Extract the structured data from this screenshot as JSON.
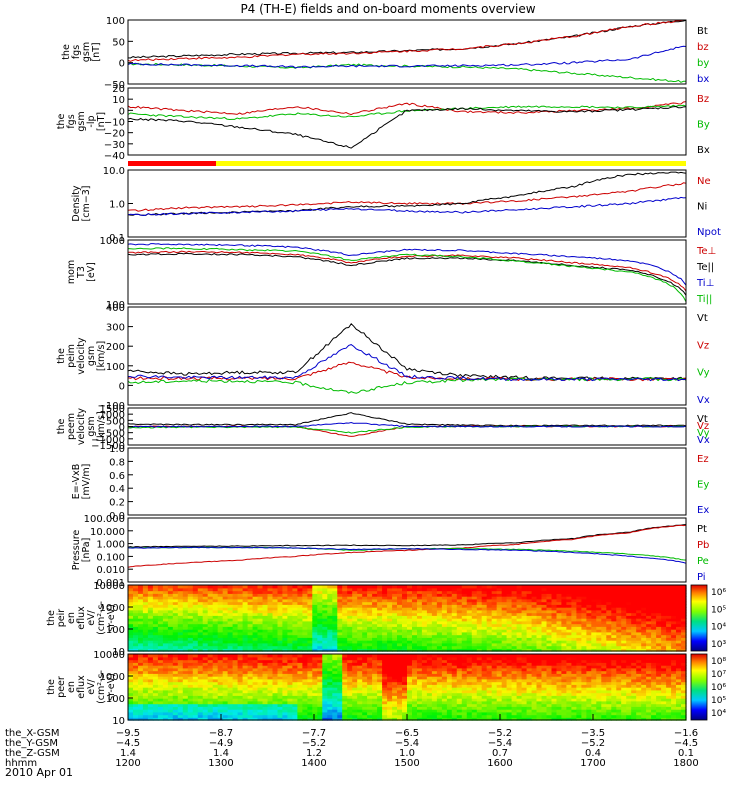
{
  "title": "P4 (TH-E) fields and on-board moments overview",
  "date_label": "2010 Apr 01",
  "chart_data": [
    {
      "type": "line",
      "title": "fgs",
      "ylabel": [
        "the",
        "fgs",
        "gsm",
        "[nT]"
      ],
      "ylim": [
        -50,
        100
      ],
      "yticks": [
        "100",
        "50",
        "0",
        "−50"
      ],
      "series": [
        {
          "name": "Bt",
          "color": "#000000",
          "values": [
            12,
            16,
            20,
            22,
            24,
            28,
            33,
            45,
            62,
            85,
            100
          ]
        },
        {
          "name": "bz",
          "color": "#cc0000",
          "values": [
            5,
            10,
            12,
            20,
            22,
            27,
            33,
            45,
            62,
            85,
            100
          ]
        },
        {
          "name": "by",
          "color": "#00bb00",
          "values": [
            -3,
            -5,
            -8,
            -12,
            -5,
            -8,
            -10,
            -15,
            -25,
            -35,
            -45
          ]
        },
        {
          "name": "bx",
          "color": "#0000cc",
          "values": [
            -3,
            -5,
            -7,
            -10,
            -8,
            -8,
            -7,
            -5,
            0,
            8,
            40
          ]
        }
      ]
    },
    {
      "type": "line",
      "title": "fgs high-pass",
      "ylabel": [
        "the",
        "fgs",
        "gsm",
        "-lp",
        "[nT]"
      ],
      "ylim": [
        -45,
        20
      ],
      "yticks": [
        "20",
        "10",
        "0",
        "−10",
        "−20",
        "−30",
        "−40"
      ],
      "series": [
        {
          "name": "Bz",
          "color": "#cc0000",
          "values": [
            2,
            -2,
            -5,
            2,
            -5,
            5,
            -3,
            -4,
            -2,
            0,
            6
          ]
        },
        {
          "name": "By",
          "color": "#00bb00",
          "values": [
            -5,
            -8,
            -10,
            -5,
            -8,
            -2,
            0,
            2,
            2,
            1,
            3
          ]
        },
        {
          "name": "Bx",
          "color": "#000000",
          "values": [
            -10,
            -12,
            -18,
            -25,
            -38,
            -2,
            0,
            -2,
            -3,
            -1,
            2
          ]
        }
      ]
    },
    {
      "type": "line",
      "title": "density",
      "ylabel": [
        "Density",
        "[cm−3]"
      ],
      "yscale": "log",
      "ylim": [
        0.1,
        10
      ],
      "yticks": [
        "10.0",
        "1.0",
        "0.1"
      ],
      "series": [
        {
          "name": "Ne",
          "color": "#cc0000",
          "values": [
            0.6,
            0.75,
            0.8,
            0.9,
            1.1,
            1.0,
            1.0,
            1.2,
            1.6,
            2.3,
            4.0
          ]
        },
        {
          "name": "Ni",
          "color": "#000000",
          "values": [
            0.45,
            0.5,
            0.55,
            0.6,
            0.8,
            0.85,
            1.0,
            1.7,
            3.2,
            7.5,
            8.5
          ]
        },
        {
          "name": "Npot",
          "color": "#0000cc",
          "values": [
            0.45,
            0.5,
            0.55,
            0.6,
            0.7,
            0.6,
            0.55,
            0.65,
            0.8,
            1.0,
            1.5
          ]
        }
      ]
    },
    {
      "type": "line",
      "title": "temperature",
      "ylabel": [
        "mom",
        "T3",
        "[eV]"
      ],
      "yscale": "log",
      "ylim": [
        50,
        10000
      ],
      "yticks": [
        "1000",
        "100"
      ],
      "series": [
        {
          "name": "Te⊥",
          "color": "#cc0000",
          "values": [
            3500,
            3800,
            3600,
            3000,
            1500,
            2600,
            2800,
            2200,
            1500,
            1000,
            150
          ]
        },
        {
          "name": "Te||",
          "color": "#000000",
          "values": [
            3000,
            3200,
            3000,
            2500,
            1200,
            2200,
            2200,
            1800,
            1200,
            800,
            100
          ]
        },
        {
          "name": "Ti⊥",
          "color": "#0000cc",
          "values": [
            7000,
            7000,
            6500,
            5500,
            2800,
            4500,
            4200,
            3200,
            2500,
            1800,
            250
          ]
        },
        {
          "name": "Ti||",
          "color": "#00bb00",
          "values": [
            5000,
            5000,
            4500,
            4000,
            1800,
            3000,
            2500,
            1700,
            1100,
            700,
            60
          ]
        }
      ]
    },
    {
      "type": "line",
      "title": "ion velocity",
      "ylabel": [
        "the",
        "peim",
        "velocity",
        "gsm",
        "[km/s]"
      ],
      "ylim": [
        -150,
        420
      ],
      "yticks": [
        "400",
        "300",
        "200",
        "100",
        "0",
        "−100"
      ],
      "series": [
        {
          "name": "Vt",
          "color": "#000000",
          "values": [
            50,
            30,
            40,
            40,
            320,
            60,
            20,
            10,
            5,
            5,
            5
          ]
        },
        {
          "name": "Vz",
          "color": "#cc0000",
          "values": [
            5,
            5,
            5,
            5,
            100,
            10,
            5,
            0,
            0,
            0,
            0
          ]
        },
        {
          "name": "Vy",
          "color": "#00bb00",
          "values": [
            -20,
            -10,
            -10,
            -20,
            -80,
            -20,
            -5,
            0,
            0,
            0,
            0
          ]
        },
        {
          "name": "Vx",
          "color": "#0000cc",
          "values": [
            20,
            10,
            10,
            10,
            200,
            15,
            5,
            0,
            0,
            0,
            0
          ]
        }
      ]
    },
    {
      "type": "line",
      "title": "electron velocity",
      "ylabel": [
        "the",
        "peem",
        "velocity",
        "gsm",
        "[km/s]"
      ],
      "ylim": [
        -1500,
        1500
      ],
      "yticks": [
        "1500",
        "1000",
        "500",
        "0",
        "−500",
        "−1000",
        "−1500"
      ],
      "series": [
        {
          "name": "Vt",
          "color": "#000000",
          "values": [
            200,
            150,
            150,
            150,
            1100,
            200,
            100,
            80,
            80,
            80,
            80
          ]
        },
        {
          "name": "Vz",
          "color": "#cc0000",
          "values": [
            0,
            0,
            0,
            0,
            -800,
            0,
            0,
            0,
            0,
            0,
            0
          ]
        },
        {
          "name": "Vy",
          "color": "#00bb00",
          "values": [
            -100,
            -50,
            -50,
            -50,
            -500,
            -50,
            0,
            0,
            0,
            0,
            0
          ]
        },
        {
          "name": "Vx",
          "color": "#0000cc",
          "values": [
            0,
            0,
            0,
            0,
            300,
            0,
            0,
            0,
            0,
            0,
            0
          ]
        }
      ]
    },
    {
      "type": "line",
      "title": "E = -VxB",
      "ylabel": [
        "E=-VxB",
        "[mV/m]"
      ],
      "ylim": [
        0,
        1
      ],
      "yticks": [
        "1.0",
        "0.8",
        "0.6",
        "0.4",
        "0.2",
        "0.0"
      ],
      "series": [
        {
          "name": "Ez",
          "color": "#cc0000",
          "values": []
        },
        {
          "name": "Ey",
          "color": "#00bb00",
          "values": []
        },
        {
          "name": "Ex",
          "color": "#0000cc",
          "values": []
        }
      ]
    },
    {
      "type": "line",
      "title": "pressure",
      "ylabel": [
        "Pressure",
        "[nPa]"
      ],
      "yscale": "log",
      "ylim": [
        0.001,
        100
      ],
      "yticks": [
        "100.000",
        "10.000",
        "1.000",
        "0.100",
        "0.010",
        "0.001"
      ],
      "series": [
        {
          "name": "Pt",
          "color": "#000000",
          "values": [
            0.55,
            0.6,
            0.65,
            0.7,
            0.75,
            0.7,
            0.8,
            1.2,
            2.5,
            8,
            30
          ]
        },
        {
          "name": "Pb",
          "color": "#cc0000",
          "values": [
            0.015,
            0.03,
            0.05,
            0.1,
            0.2,
            0.3,
            0.45,
            0.9,
            2.2,
            7,
            28
          ]
        },
        {
          "name": "Pe",
          "color": "#00bb00",
          "values": [
            0.45,
            0.5,
            0.5,
            0.45,
            0.3,
            0.4,
            0.4,
            0.35,
            0.25,
            0.15,
            0.05
          ]
        },
        {
          "name": "Pi",
          "color": "#0000cc",
          "values": [
            0.45,
            0.5,
            0.5,
            0.45,
            0.35,
            0.4,
            0.35,
            0.3,
            0.2,
            0.1,
            0.03
          ]
        }
      ]
    },
    {
      "type": "heatmap",
      "title": "ion energy flux",
      "ylabel": [
        "the",
        "peir",
        "en",
        "eflux",
        "eV/",
        "(cm²-s-",
        "sr-eV)"
      ],
      "yticks": [
        "10000",
        "1000",
        "100",
        "10"
      ],
      "colorbar_ticks": [
        "10⁶",
        "10⁵",
        "10⁴",
        "10³"
      ]
    },
    {
      "type": "heatmap",
      "title": "electron energy flux",
      "ylabel": [
        "the",
        "peer",
        "en",
        "eflux",
        "eV/",
        "(cm²-s-",
        "sr-eV)"
      ],
      "yticks": [
        "10000",
        "1000",
        "100",
        "10"
      ],
      "colorbar_ticks": [
        "10⁸",
        "10⁷",
        "10⁶",
        "10⁵",
        "10⁴"
      ]
    }
  ],
  "x_axis": {
    "hhmm": [
      "1200",
      "1300",
      "1400",
      "1500",
      "1600",
      "1700",
      "1800"
    ],
    "rows": [
      {
        "label": "the_X-GSM",
        "values": [
          "−9.5",
          "−8.7",
          "−7.7",
          "−6.5",
          "−5.2",
          "−3.5",
          "−1.6"
        ]
      },
      {
        "label": "the_Y-GSM",
        "values": [
          "−4.5",
          "−4.9",
          "−5.2",
          "−5.4",
          "−5.4",
          "−5.2",
          "−4.5"
        ]
      },
      {
        "label": "the_Z-GSM",
        "values": [
          "1.4",
          "1.4",
          "1.2",
          "1.0",
          "0.7",
          "0.4",
          "0.1"
        ]
      },
      {
        "label": "hhmm",
        "values": [
          "1200",
          "1300",
          "1400",
          "1500",
          "1600",
          "1700",
          "1800"
        ]
      }
    ]
  }
}
